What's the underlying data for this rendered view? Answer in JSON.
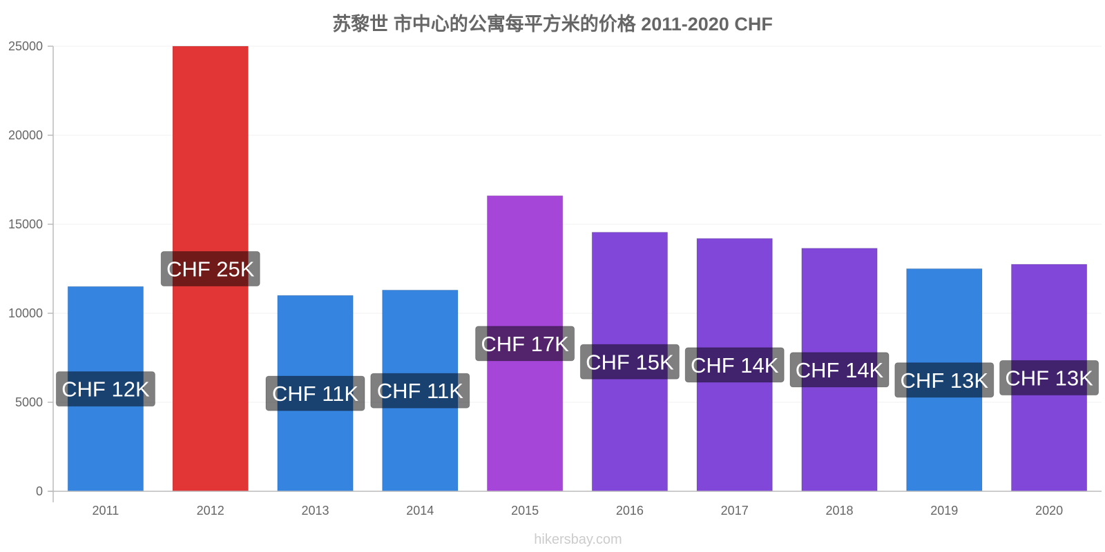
{
  "chart_data": {
    "type": "bar",
    "title": "苏黎世 市中心的公寓每平方米的价格 2011-2020 CHF",
    "categories": [
      "2011",
      "2012",
      "2013",
      "2014",
      "2015",
      "2016",
      "2017",
      "2018",
      "2019",
      "2020"
    ],
    "values": [
      11500,
      25000,
      11000,
      11300,
      16600,
      14550,
      14200,
      13650,
      12500,
      12750
    ],
    "data_labels": [
      "CHF 12K",
      "CHF 25K",
      "CHF 11K",
      "CHF 11K",
      "CHF 17K",
      "CHF 15K",
      "CHF 14K",
      "CHF 14K",
      "CHF 13K",
      "CHF 13K"
    ],
    "bar_colors": [
      "#3584e0",
      "#e23535",
      "#3584e0",
      "#3584e0",
      "#a646d8",
      "#8147d8",
      "#8147d8",
      "#8147d8",
      "#3584e0",
      "#8147d8"
    ],
    "ylim": [
      0,
      25000
    ],
    "yticks": [
      0,
      5000,
      10000,
      15000,
      20000,
      25000
    ],
    "xlabel": "",
    "ylabel": "",
    "grid": true,
    "watermark": "hikersbay.com"
  }
}
